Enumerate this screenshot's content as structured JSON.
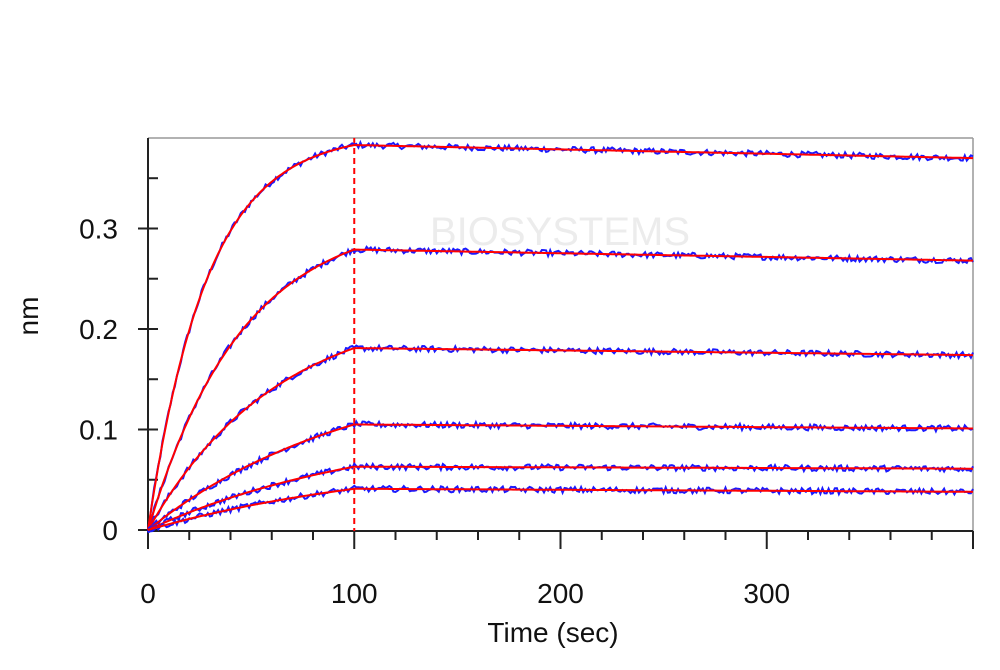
{
  "chart_data": {
    "type": "line",
    "title": "",
    "xlabel": "Time (sec)",
    "ylabel": "nm",
    "xlim": [
      0,
      400
    ],
    "ylim": [
      -0.001,
      0.39
    ],
    "x_ticks": [
      0,
      100,
      200,
      300
    ],
    "y_ticks": [
      0,
      0.1,
      0.2,
      0.3
    ],
    "x_ticks_labels": [
      "0",
      "100",
      "200",
      "300"
    ],
    "y_ticks_labels": [
      "0",
      "0.1",
      "0.2",
      "0.3"
    ],
    "grid": false,
    "legend": "none",
    "association_end": 100,
    "curves": [
      {
        "plateau": 0.383,
        "end": 0.37,
        "assoc_k": 0.035
      },
      {
        "plateau": 0.279,
        "end": 0.268,
        "assoc_k": 0.022
      },
      {
        "plateau": 0.181,
        "end": 0.174,
        "assoc_k": 0.016
      },
      {
        "plateau": 0.105,
        "end": 0.101,
        "assoc_k": 0.01
      },
      {
        "plateau": 0.063,
        "end": 0.061,
        "assoc_k": 0.009
      },
      {
        "plateau": 0.041,
        "end": 0.038,
        "assoc_k": 0.008
      }
    ],
    "colors": {
      "data": "#1a1aff",
      "fit": "#ff0000",
      "marker_line": "#ff0000",
      "axis": "#222222",
      "frame": "#999999"
    },
    "watermark": "BIOSYSTEMS"
  }
}
